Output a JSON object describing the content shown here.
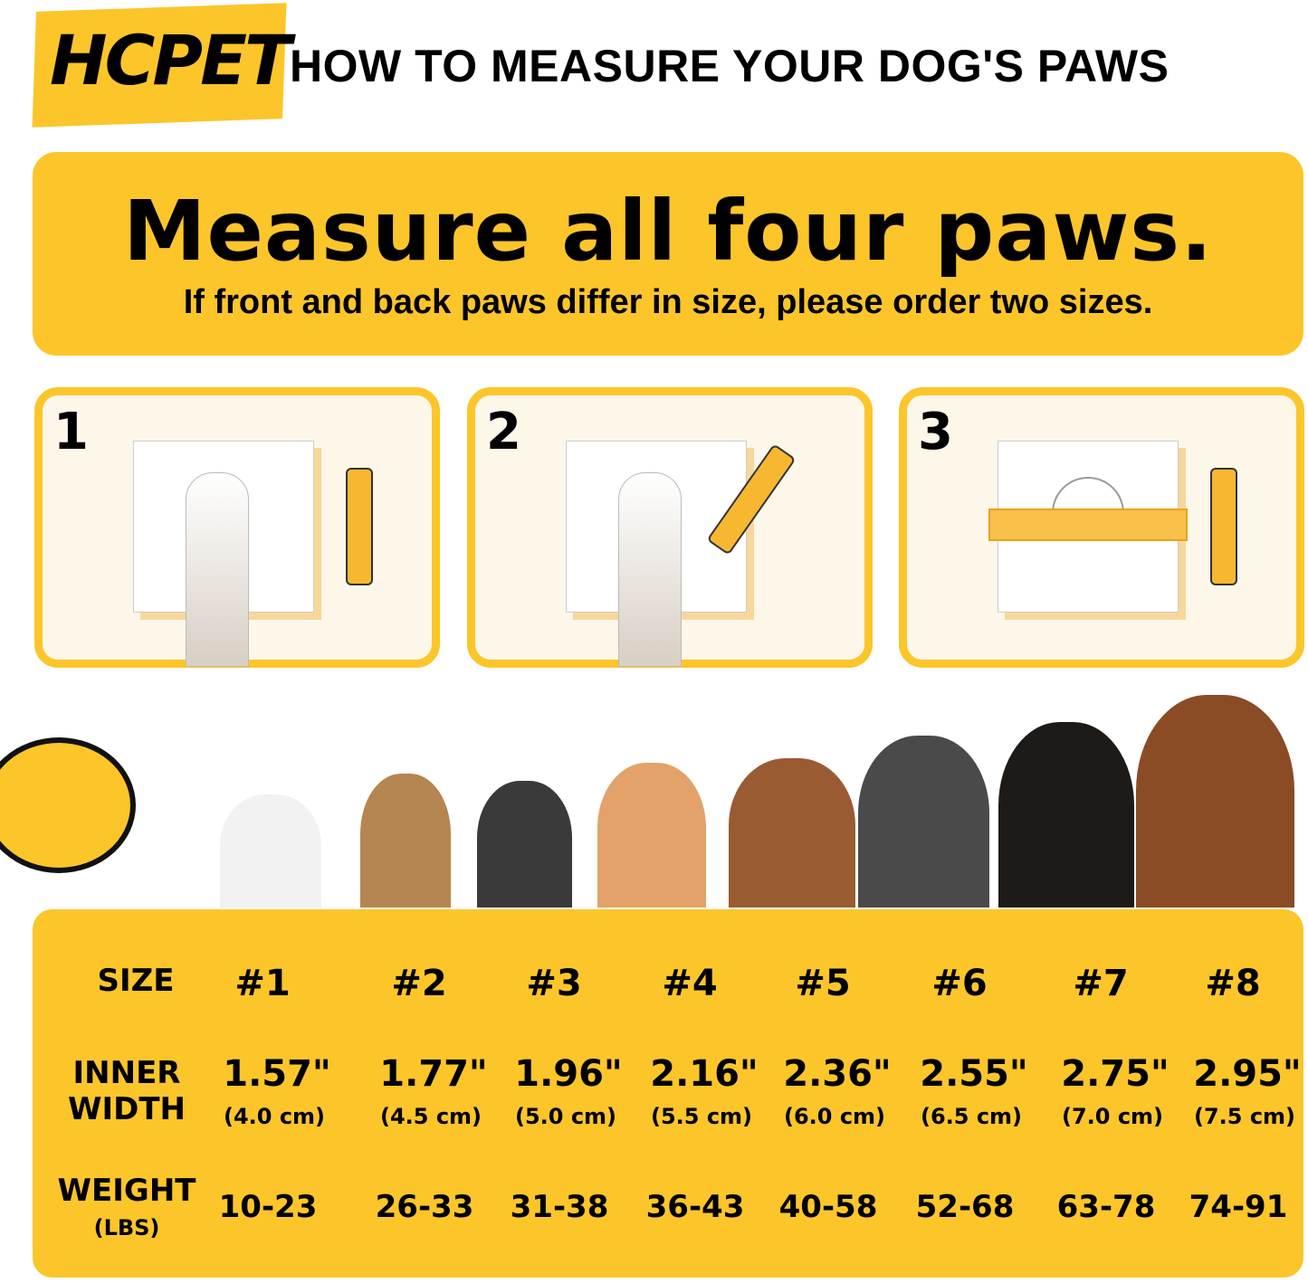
{
  "brand": {
    "logo": "HCPET",
    "accent": "#fcc52a"
  },
  "header": {
    "title": "HOW TO MEASURE YOUR DOG'S PAWS"
  },
  "banner": {
    "heading": "Measure all four paws.",
    "subheading": "If front and back paws differ in size, please order two sizes."
  },
  "steps": [
    {
      "number": "1"
    },
    {
      "number": "2"
    },
    {
      "number": "3"
    }
  ],
  "table": {
    "size_label": "SIZE",
    "width_label": [
      "INNER",
      "WIDTH"
    ],
    "weight_label": [
      "WEIGHT",
      "(LBS)"
    ],
    "sizes": [
      "#1",
      "#2",
      "#3",
      "#4",
      "#5",
      "#6",
      "#7",
      "#8"
    ],
    "widths_in": [
      "1.57\"",
      "1.77\"",
      "1.96\"",
      "2.16\"",
      "2.36\"",
      "2.55\"",
      "2.75\"",
      "2.95\""
    ],
    "widths_cm": [
      "(4.0 cm)",
      "(4.5 cm)",
      "(5.0 cm)",
      "(5.5 cm)",
      "(6.0 cm)",
      "(6.5 cm)",
      "(7.0 cm)",
      "(7.5 cm)"
    ],
    "weights": [
      "10-23",
      "26-33",
      "31-38",
      "36-43",
      "40-58",
      "52-68",
      "63-78",
      "74-91"
    ]
  }
}
